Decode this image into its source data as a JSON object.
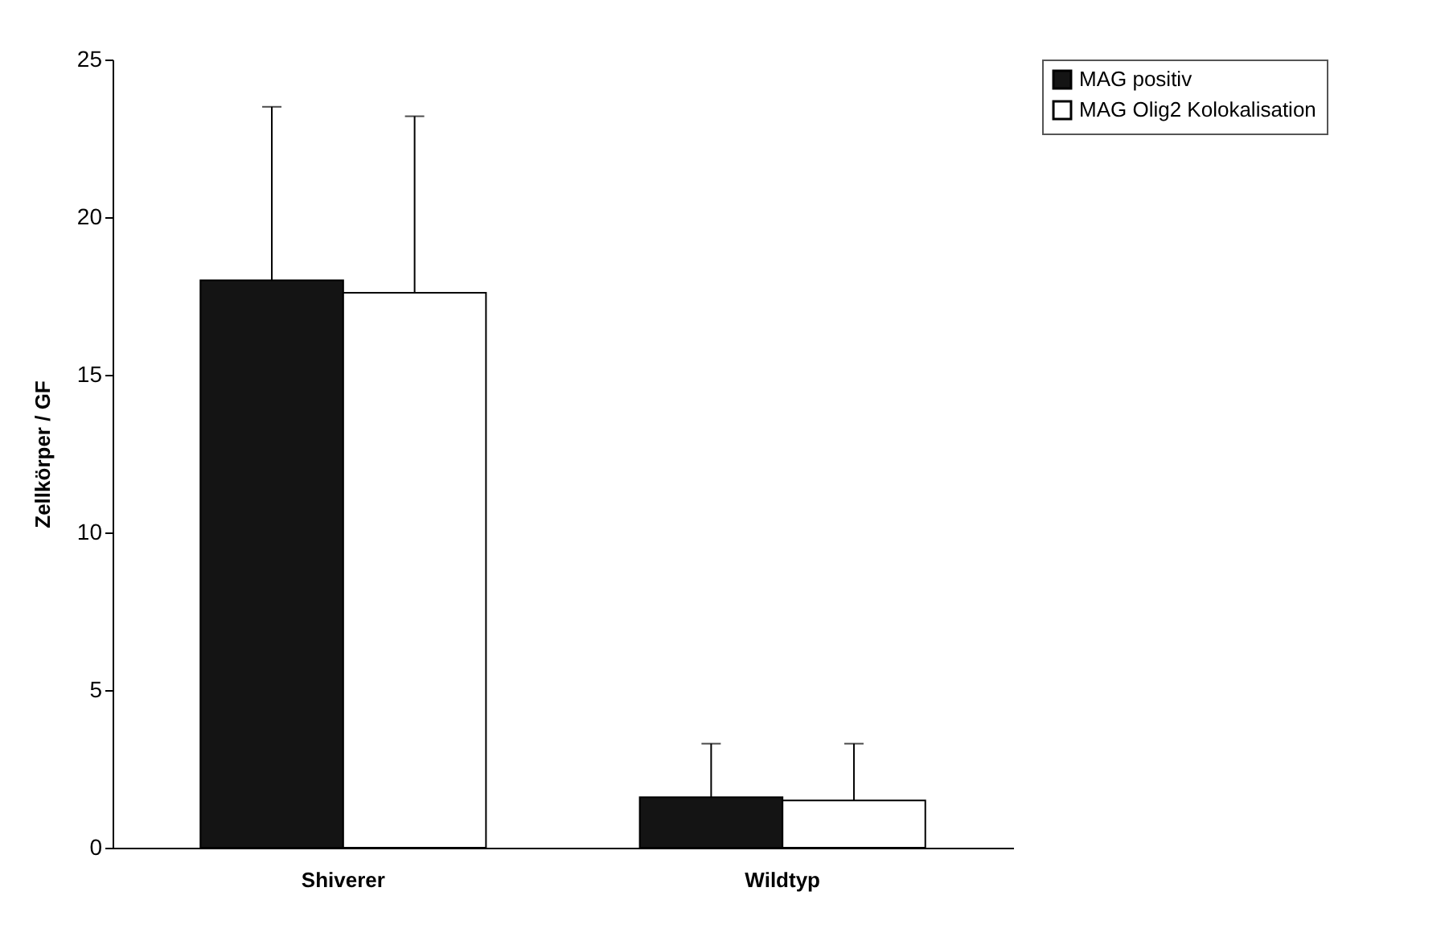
{
  "chart_data": {
    "type": "bar",
    "ylabel": "Zellkörper / GF",
    "categories": [
      "Shiverer",
      "Wildtyp"
    ],
    "series": [
      {
        "name": "MAG positiv",
        "color": "#141414",
        "values": [
          18.0,
          1.6
        ],
        "errors": [
          [
            18.0,
            23.5
          ],
          [
            1.6,
            3.3
          ]
        ]
      },
      {
        "name": "MAG Olig2 Kolokalisation",
        "color": "#ffffff",
        "values": [
          17.6,
          1.5
        ],
        "errors": [
          [
            17.6,
            23.2
          ],
          [
            1.5,
            3.3
          ]
        ]
      }
    ],
    "ylim": [
      0,
      25
    ],
    "yticks": [
      0,
      5,
      10,
      15,
      20,
      25
    ],
    "grid": false,
    "legend": "right"
  }
}
